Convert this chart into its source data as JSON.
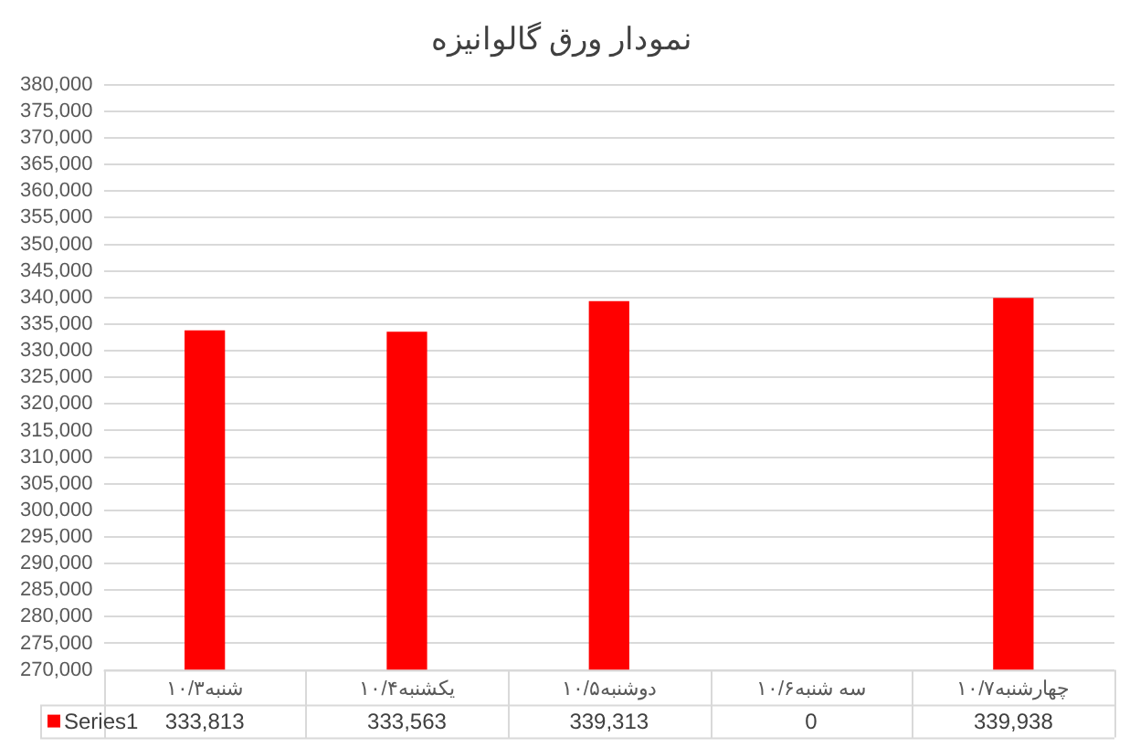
{
  "chart_data": {
    "type": "bar",
    "title": "نمودار ورق گالوانیزه",
    "categories": [
      "شنبه۱۰/۳",
      "یکشنبه۱۰/۴",
      "دوشنبه۱۰/۵",
      "سه شنبه۱۰/۶",
      "چهارشنبه۱۰/۷"
    ],
    "series": [
      {
        "name": "Series1",
        "color": "#ff0000",
        "values": [
          333813,
          333563,
          339313,
          null,
          339938
        ],
        "value_labels": [
          "333,813",
          "333,563",
          "339,313",
          "0",
          "339,938"
        ]
      }
    ],
    "ylim": [
      270000,
      380000
    ],
    "yticks": [
      {
        "value": 270000,
        "label": "270,000"
      },
      {
        "value": 275000,
        "label": "275,000"
      },
      {
        "value": 280000,
        "label": "280,000"
      },
      {
        "value": 285000,
        "label": "285,000"
      },
      {
        "value": 290000,
        "label": "290,000"
      },
      {
        "value": 295000,
        "label": "295,000"
      },
      {
        "value": 300000,
        "label": "300,000"
      },
      {
        "value": 305000,
        "label": "305,000"
      },
      {
        "value": 310000,
        "label": "310,000"
      },
      {
        "value": 315000,
        "label": "315,000"
      },
      {
        "value": 320000,
        "label": "320,000"
      },
      {
        "value": 325000,
        "label": "325,000"
      },
      {
        "value": 330000,
        "label": "330,000"
      },
      {
        "value": 335000,
        "label": "335,000"
      },
      {
        "value": 340000,
        "label": "340,000"
      },
      {
        "value": 345000,
        "label": "345,000"
      },
      {
        "value": 350000,
        "label": "350,000"
      },
      {
        "value": 355000,
        "label": "355,000"
      },
      {
        "value": 360000,
        "label": "360,000"
      },
      {
        "value": 365000,
        "label": "365,000"
      },
      {
        "value": 370000,
        "label": "370,000"
      },
      {
        "value": 375000,
        "label": "375,000"
      },
      {
        "value": 380000,
        "label": "380,000"
      }
    ],
    "grid": "y"
  }
}
